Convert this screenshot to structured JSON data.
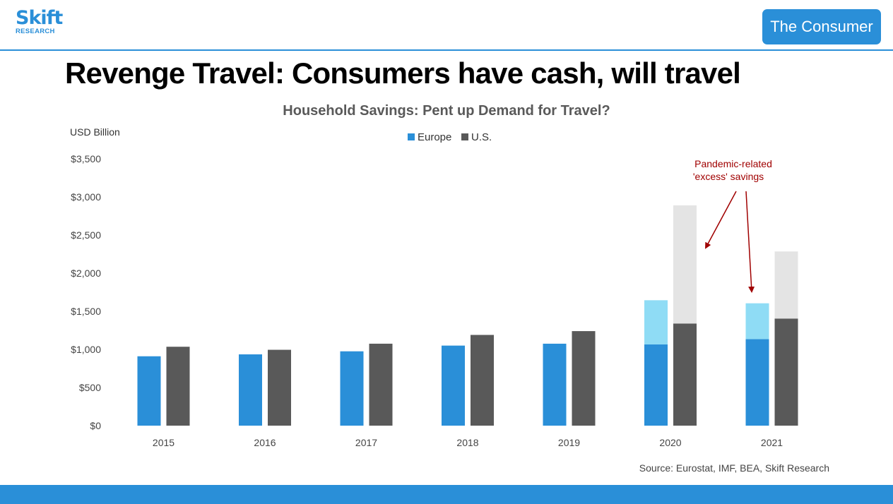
{
  "header": {
    "logo_main": "Skift",
    "logo_sub": "RESEARCH",
    "category_button": "The Consumer"
  },
  "slide": {
    "title": "Revenge Travel: Consumers have cash, will travel"
  },
  "colors": {
    "brand": "#2a8fd8",
    "europe": "#2a8fd8",
    "us": "#595959",
    "europe_excess": "#8fdcf5",
    "us_excess": "#e4e4e4",
    "annotation": "#a00000"
  },
  "chart_data": {
    "type": "bar",
    "stacked": true,
    "title": "Household Savings: Pent up Demand for Travel?",
    "ylabel": "USD Billion",
    "ylim": [
      0,
      3500
    ],
    "yticks": [
      0,
      500,
      1000,
      1500,
      2000,
      2500,
      3000,
      3500
    ],
    "ytick_labels": [
      "$0",
      "$500",
      "$1,000",
      "$1,500",
      "$2,000",
      "$2,500",
      "$3,000",
      "$3,500"
    ],
    "categories": [
      "2015",
      "2016",
      "2017",
      "2018",
      "2019",
      "2020",
      "2021"
    ],
    "legend": [
      "Europe",
      "U.S."
    ],
    "legend_position": "top-center",
    "grid": false,
    "series": [
      {
        "name": "Europe",
        "values": [
          910,
          935,
          975,
          1050,
          1075,
          1065,
          1135
        ],
        "excess": [
          0,
          0,
          0,
          0,
          0,
          580,
          470
        ]
      },
      {
        "name": "U.S.",
        "values": [
          1035,
          995,
          1075,
          1190,
          1240,
          1340,
          1405
        ],
        "excess": [
          0,
          0,
          0,
          0,
          0,
          1550,
          880
        ]
      }
    ],
    "annotation": {
      "lines": [
        "Pandemic-related",
        "'excess' savings"
      ]
    },
    "source": "Source: Eurostat, IMF, BEA, Skift Research"
  }
}
